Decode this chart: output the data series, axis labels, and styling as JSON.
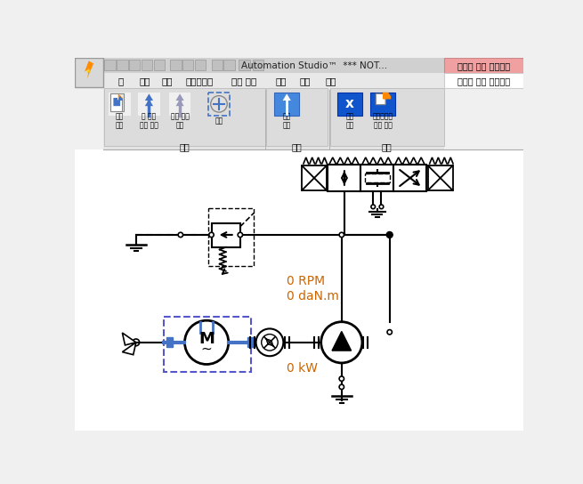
{
  "title_bar_text": "Automation Studio™  *** NOT...",
  "title_bar_right": "사용자 정의 콘포넌트",
  "menu_items": [
    "홈",
    "편집",
    "보기",
    "시뮬레이션",
    "고장 분석",
    "유체",
    "도구",
    "지원"
  ],
  "menu_right": "사용자 정의 콘포넌트",
  "edit_group_name": "편집",
  "action_group_name": "동작",
  "config_group_name": "구성",
  "lbl_kigo": "기호\n열기",
  "lbl_level": "한 레벨\n위로 이동",
  "lbl_edit_end": "기호 편집\n종료",
  "lbl_port": "포트",
  "lbl_action": "동작\n열기",
  "lbl_var": "변수\n구성",
  "lbl_sim": "시뮬레이션\n설정 구성",
  "labels": [
    "0 RPM",
    "0 daN.m",
    "0 kW"
  ],
  "bg_color": "#f0f0f0",
  "white": "#ffffff",
  "title_bg": "#c8c8c8",
  "active_tab_bg": "#f0a0a0",
  "blue": "#4472c4",
  "dashed_blue": "#5555cc",
  "orange": "#cc6600",
  "label_color": "#cc6600",
  "black": "#000000",
  "gray_ribbon": "#e0e0e0",
  "menu_bg": "#e8e8e8",
  "separator_color": "#b0b0b0"
}
